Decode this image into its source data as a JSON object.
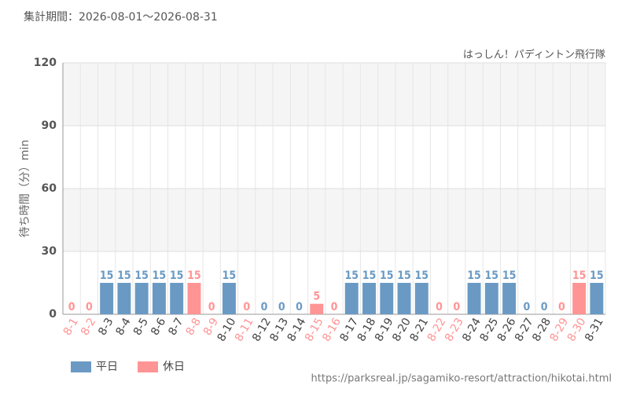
{
  "chart_data": {
    "type": "bar",
    "title": "集計期間：2026-08-01～2026-08-31",
    "subtitle": "はっしん！パディントン飛行隊",
    "y_label": "待ち時間（分）min",
    "source": "https://parksreal.jp/sagamiko-resort/attraction/hikotai.html",
    "categories": [
      "8-1",
      "8-2",
      "8-3",
      "8-4",
      "8-5",
      "8-6",
      "8-7",
      "8-8",
      "8-9",
      "8-10",
      "8-11",
      "8-12",
      "8-13",
      "8-14",
      "8-15",
      "8-16",
      "8-17",
      "8-18",
      "8-19",
      "8-20",
      "8-21",
      "8-22",
      "8-23",
      "8-24",
      "8-25",
      "8-26",
      "8-27",
      "8-28",
      "8-29",
      "8-30",
      "8-31"
    ],
    "series": [
      {
        "name": "平日",
        "color": "#6a9ac4",
        "values": [
          null,
          null,
          15,
          15,
          15,
          15,
          15,
          null,
          null,
          15,
          null,
          0,
          0,
          0,
          null,
          null,
          15,
          15,
          15,
          15,
          15,
          null,
          null,
          15,
          15,
          15,
          0,
          0,
          null,
          null,
          15
        ]
      },
      {
        "name": "休日",
        "color": "#ff9494",
        "values": [
          0,
          0,
          null,
          null,
          null,
          null,
          null,
          15,
          0,
          null,
          0,
          null,
          null,
          null,
          5,
          0,
          null,
          null,
          null,
          null,
          null,
          0,
          0,
          null,
          null,
          null,
          null,
          null,
          0,
          15,
          null
        ]
      }
    ],
    "ylim": [
      0,
      120
    ],
    "yticks": [
      0,
      30,
      60,
      90,
      120
    ],
    "grid": true,
    "legend": "bottom-left"
  }
}
